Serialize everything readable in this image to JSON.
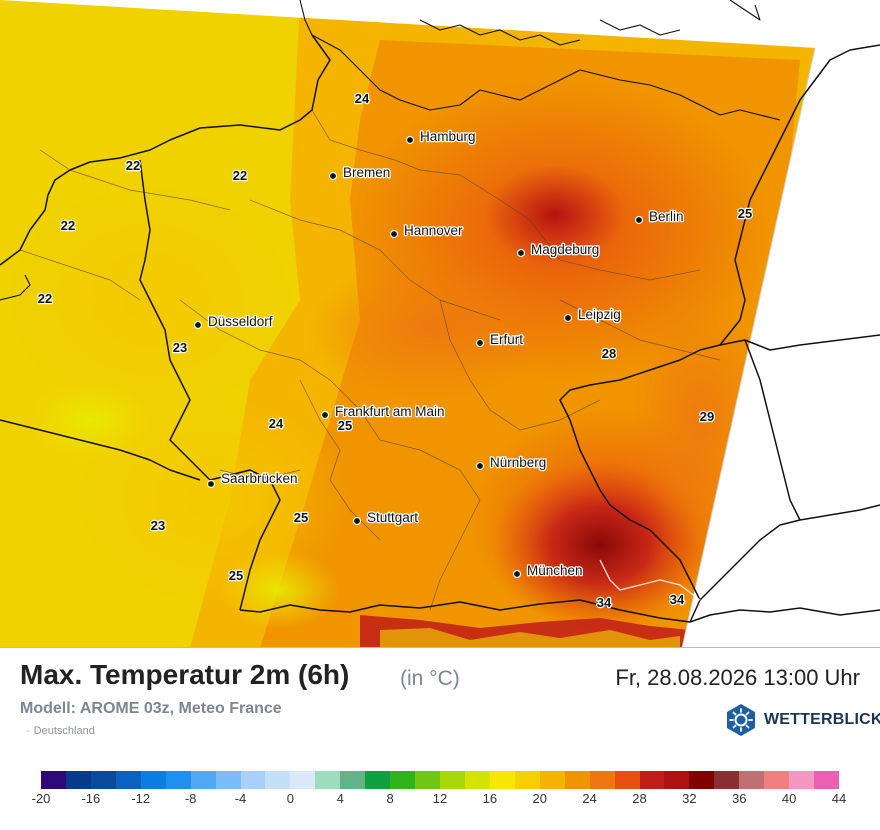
{
  "map": {
    "region": "Deutschland",
    "cities": [
      {
        "name": "Hamburg"
      },
      {
        "name": "Bremen"
      },
      {
        "name": "Berlin"
      },
      {
        "name": "Hannover"
      },
      {
        "name": "Magdeburg"
      },
      {
        "name": "Düsseldorf"
      },
      {
        "name": "Leipzig"
      },
      {
        "name": "Erfurt"
      },
      {
        "name": "Frankfurt am Main"
      },
      {
        "name": "Nürnberg"
      },
      {
        "name": "Saarbrücken"
      },
      {
        "name": "Stuttgart"
      },
      {
        "name": "München"
      }
    ],
    "value_labels": [
      "24",
      "22",
      "22",
      "22",
      "22",
      "25",
      "23",
      "28",
      "24",
      "25",
      "29",
      "23",
      "25",
      "25",
      "34",
      "34"
    ]
  },
  "header": {
    "title": "Max. Temperatur 2m (6h)",
    "unit": "(in °C)",
    "datetime": "Fr, 28.08.2026 13:00 Uhr",
    "model": "Modell: AROME 03z, Meteo France",
    "region": "Deutschland"
  },
  "brand": {
    "name": "WETTERBLICK",
    "icon": "sun-snowflake-icon",
    "color": "#1e5fa3"
  },
  "legend": {
    "unit": "°C",
    "min": -20,
    "max": 44,
    "step": 2,
    "tick_labels": [
      "-20",
      "-16",
      "-12",
      "-8",
      "-4",
      "0",
      "4",
      "8",
      "12",
      "16",
      "20",
      "24",
      "28",
      "32",
      "36",
      "40",
      "44"
    ],
    "colors": [
      "#2d0a78",
      "#063a8c",
      "#0a4a9c",
      "#0a62c0",
      "#0a7ee0",
      "#2090f0",
      "#50a8f4",
      "#7cbcf6",
      "#a8d0f8",
      "#c4dff8",
      "#d8eaf8",
      "#9edcc0",
      "#60b488",
      "#10a040",
      "#30b41c",
      "#70c814",
      "#a8d808",
      "#d4e400",
      "#f8e800",
      "#f8d000",
      "#f4b400",
      "#f09400",
      "#ee7810",
      "#e85010",
      "#c01c18",
      "#b01010",
      "#820000",
      "#8a3030",
      "#c07070",
      "#f08080",
      "#f498c0",
      "#ec60b4"
    ]
  }
}
